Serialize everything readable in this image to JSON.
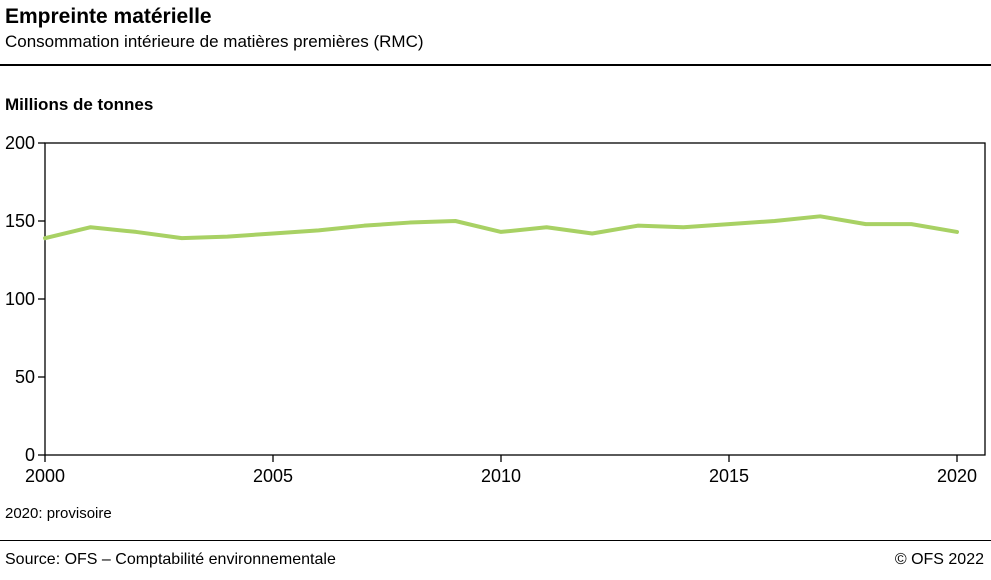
{
  "header": {
    "title": "Empreinte matérielle",
    "subtitle": "Consommation intérieure de matières premières (RMC)"
  },
  "chart": {
    "axis_title": "Millions de tonnes",
    "note": "2020: provisoire"
  },
  "footer": {
    "source": "Source: OFS – Comptabilité environnementale",
    "copyright": "© OFS 2022"
  },
  "chart_data": {
    "type": "line",
    "title": "Empreinte matérielle",
    "subtitle": "Consommation intérieure de matières premières (RMC)",
    "xlabel": "",
    "ylabel": "Millions de tonnes",
    "ylim": [
      0,
      200
    ],
    "yticks": [
      0,
      50,
      100,
      150,
      200
    ],
    "xticks": [
      2000,
      2005,
      2010,
      2015,
      2020
    ],
    "grid": false,
    "legend_position": "none",
    "line_color": "#a8d164",
    "axis_color": "#000000",
    "x": [
      2000,
      2001,
      2002,
      2003,
      2004,
      2005,
      2006,
      2007,
      2008,
      2009,
      2010,
      2011,
      2012,
      2013,
      2014,
      2015,
      2016,
      2017,
      2018,
      2019,
      2020
    ],
    "series": [
      {
        "name": "Consommation intérieure de matières premières (RMC)",
        "values": [
          139,
          146,
          143,
          139,
          140,
          142,
          144,
          147,
          149,
          150,
          143,
          146,
          142,
          147,
          146,
          148,
          150,
          153,
          148,
          148,
          143
        ]
      }
    ]
  }
}
